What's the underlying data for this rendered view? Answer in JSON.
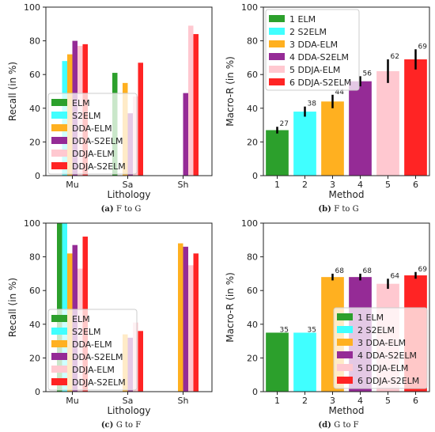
{
  "chart_data": [
    {
      "type": "bar",
      "caption_letter": "(a)",
      "caption": "F to G",
      "xlabel": "Lithology",
      "ylabel": "Recall (in %)",
      "ylim": [
        0,
        100
      ],
      "yticks": [
        "0",
        "20",
        "40",
        "60",
        "80",
        "100"
      ],
      "categories": [
        "Mu",
        "Sa",
        "Sh"
      ],
      "legend_placement": "lower-left",
      "series": [
        {
          "name": "ELM",
          "color": "#2ca02c",
          "values": [
            0,
            61,
            0
          ]
        },
        {
          "name": "S2ELM",
          "color": "#40ffff",
          "values": [
            68,
            0,
            0
          ]
        },
        {
          "name": "DDA-ELM",
          "color": "#ffb020",
          "values": [
            72,
            55,
            0
          ]
        },
        {
          "name": "DDA-S2ELM",
          "color": "#952b96",
          "values": [
            80,
            37,
            49
          ]
        },
        {
          "name": "DDJA-ELM",
          "color": "#ffc8d0",
          "values": [
            77,
            47,
            89
          ]
        },
        {
          "name": "DDJA-S2ELM",
          "color": "#ff2424",
          "values": [
            78,
            67,
            84
          ]
        }
      ]
    },
    {
      "type": "bar",
      "caption_letter": "(b)",
      "caption": "F to G",
      "xlabel": "Method",
      "ylabel": "Macro-R (in %)",
      "ylim": [
        0,
        100
      ],
      "yticks": [
        "0",
        "20",
        "40",
        "60",
        "80",
        "100"
      ],
      "categories": [
        "1",
        "2",
        "3",
        "4",
        "5",
        "6"
      ],
      "values": [
        27,
        38,
        44,
        56,
        62,
        69
      ],
      "value_labels": [
        "27",
        "38",
        "44",
        "56",
        "62",
        "69"
      ],
      "errors": [
        2,
        3,
        4,
        3,
        7,
        6
      ],
      "colors": [
        "#2ca02c",
        "#40ffff",
        "#ffb020",
        "#952b96",
        "#ffc8d0",
        "#ff2424"
      ],
      "legend_placement": "upper-left",
      "legend": [
        "1 ELM",
        "2 S2ELM",
        "3 DDA-ELM",
        "4 DDA-S2ELM",
        "5 DDJA-ELM",
        "6 DDJA-S2ELM"
      ]
    },
    {
      "type": "bar",
      "caption_letter": "(c)",
      "caption": "G to F",
      "xlabel": "Lithology",
      "ylabel": "Recall (in %)",
      "ylim": [
        0,
        100
      ],
      "yticks": [
        "0",
        "20",
        "40",
        "60",
        "80",
        "100"
      ],
      "categories": [
        "Mu",
        "Sa",
        "Sh"
      ],
      "legend_placement": "lower-left",
      "series": [
        {
          "name": "ELM",
          "color": "#2ca02c",
          "values": [
            100,
            0,
            0
          ]
        },
        {
          "name": "S2ELM",
          "color": "#40ffff",
          "values": [
            100,
            0,
            0
          ]
        },
        {
          "name": "DDA-ELM",
          "color": "#ffb020",
          "values": [
            82,
            34,
            88
          ]
        },
        {
          "name": "DDA-S2ELM",
          "color": "#952b96",
          "values": [
            87,
            32,
            86
          ]
        },
        {
          "name": "DDJA-ELM",
          "color": "#ffc8d0",
          "values": [
            73,
            41,
            75
          ]
        },
        {
          "name": "DDJA-S2ELM",
          "color": "#ff2424",
          "values": [
            92,
            36,
            82
          ]
        }
      ]
    },
    {
      "type": "bar",
      "caption_letter": "(d)",
      "caption": "G to F",
      "xlabel": "Method",
      "ylabel": "Macro-R (in %)",
      "ylim": [
        0,
        100
      ],
      "yticks": [
        "0",
        "20",
        "40",
        "60",
        "80",
        "100"
      ],
      "categories": [
        "1",
        "2",
        "3",
        "4",
        "5",
        "6"
      ],
      "values": [
        35,
        35,
        68,
        68,
        64,
        69
      ],
      "value_labels": [
        "35",
        "35",
        "68",
        "68",
        "64",
        "69"
      ],
      "errors": [
        0,
        0,
        2,
        2,
        3,
        2
      ],
      "colors": [
        "#2ca02c",
        "#40ffff",
        "#ffb020",
        "#952b96",
        "#ffc8d0",
        "#ff2424"
      ],
      "legend_placement": "lower-right",
      "legend": [
        "1 ELM",
        "2 S2ELM",
        "3 DDA-ELM",
        "4 DDA-S2ELM",
        "5 DDJA-ELM",
        "6 DDJA-S2ELM"
      ]
    }
  ]
}
